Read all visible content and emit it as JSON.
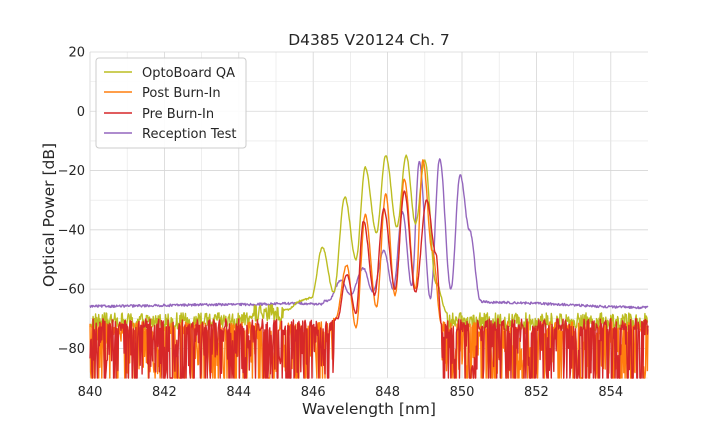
{
  "chart_data": {
    "type": "line",
    "title": "D4385 V20124 Ch. 7",
    "xlabel": "Wavelength [nm]",
    "ylabel": "Optical Power [dB]",
    "xlim": [
      840,
      855
    ],
    "ylim": [
      -90,
      20
    ],
    "xticks": [
      840,
      842,
      844,
      846,
      848,
      850,
      852,
      854
    ],
    "yticks": [
      20,
      0,
      -20,
      -40,
      -60,
      -80
    ],
    "xtick_labels": [
      "840",
      "842",
      "844",
      "846",
      "848",
      "850",
      "852",
      "854"
    ],
    "ytick_labels": [
      "20",
      "0",
      "−20",
      "−40",
      "−60",
      "−80"
    ],
    "grid": true,
    "legend_position": "upper-left",
    "noise_floor": -90,
    "series": [
      {
        "name": "OptoBoard QA",
        "color": "#bcbd22",
        "floor": -71,
        "floor_noise": 3,
        "baseline_points": [
          [
            844.7,
            -68
          ],
          [
            845.5,
            -69
          ],
          [
            846.4,
            -70
          ]
        ],
        "comb_range": [
          845.2,
          849.6
        ],
        "peaks": [
          [
            845.65,
            -64
          ],
          [
            846.25,
            -46
          ],
          [
            846.85,
            -29
          ],
          [
            847.4,
            -19
          ],
          [
            847.95,
            -15
          ],
          [
            848.5,
            -15
          ],
          [
            849.0,
            -16.5
          ]
        ],
        "valleys": [
          [
            845.3,
            -67
          ],
          [
            845.95,
            -63
          ],
          [
            846.55,
            -61
          ],
          [
            847.15,
            -50
          ],
          [
            847.7,
            -41
          ],
          [
            848.25,
            -39
          ],
          [
            848.75,
            -38
          ],
          [
            849.3,
            -58
          ],
          [
            849.6,
            -68
          ]
        ]
      },
      {
        "name": "Post Burn-In",
        "color": "#ff7f0e",
        "floor": -73,
        "floor_noise": 16,
        "comb_range": [
          846.55,
          849.45
        ],
        "peaks": [
          [
            846.9,
            -52
          ],
          [
            847.4,
            -35
          ],
          [
            847.95,
            -28
          ],
          [
            848.45,
            -23
          ],
          [
            848.95,
            -16.5
          ]
        ],
        "valleys": [
          [
            846.6,
            -70
          ],
          [
            847.15,
            -73
          ],
          [
            847.7,
            -66
          ],
          [
            848.2,
            -62
          ],
          [
            848.75,
            -60
          ],
          [
            849.2,
            -47
          ],
          [
            849.45,
            -72
          ]
        ]
      },
      {
        "name": "Pre Burn-In",
        "color": "#d62728",
        "floor": -72,
        "floor_noise": 17,
        "comb_range": [
          846.6,
          849.45
        ],
        "peaks": [
          [
            846.9,
            -55
          ],
          [
            847.35,
            -37
          ],
          [
            847.9,
            -33
          ],
          [
            848.45,
            -27
          ],
          [
            849.05,
            -30
          ]
        ],
        "valleys": [
          [
            846.65,
            -70
          ],
          [
            847.15,
            -68
          ],
          [
            847.65,
            -62
          ],
          [
            848.2,
            -60
          ],
          [
            848.75,
            -61
          ],
          [
            849.3,
            -48
          ],
          [
            849.45,
            -72
          ]
        ]
      },
      {
        "name": "Reception Test",
        "color": "#9467bd",
        "floor": -65.5,
        "floor_noise": 0.4,
        "baseline_points": [
          [
            840,
            -65.8
          ],
          [
            844,
            -65.2
          ],
          [
            845.7,
            -64.8
          ],
          [
            846.0,
            -65.0
          ],
          [
            850.4,
            -64.0
          ],
          [
            850.8,
            -64.5
          ],
          [
            855,
            -66.2
          ]
        ],
        "comb_range": [
          846.3,
          850.5
        ],
        "peaks": [
          [
            846.75,
            -57
          ],
          [
            847.35,
            -53
          ],
          [
            847.9,
            -47
          ],
          [
            848.4,
            -34
          ],
          [
            848.85,
            -17
          ],
          [
            849.4,
            -16
          ],
          [
            849.95,
            -21.5
          ]
        ],
        "valleys": [
          [
            846.4,
            -64
          ],
          [
            847.0,
            -62
          ],
          [
            847.6,
            -61
          ],
          [
            848.15,
            -60
          ],
          [
            848.65,
            -59
          ],
          [
            849.15,
            -63
          ],
          [
            849.7,
            -60
          ],
          [
            850.2,
            -40
          ],
          [
            850.5,
            -64
          ]
        ]
      }
    ]
  }
}
